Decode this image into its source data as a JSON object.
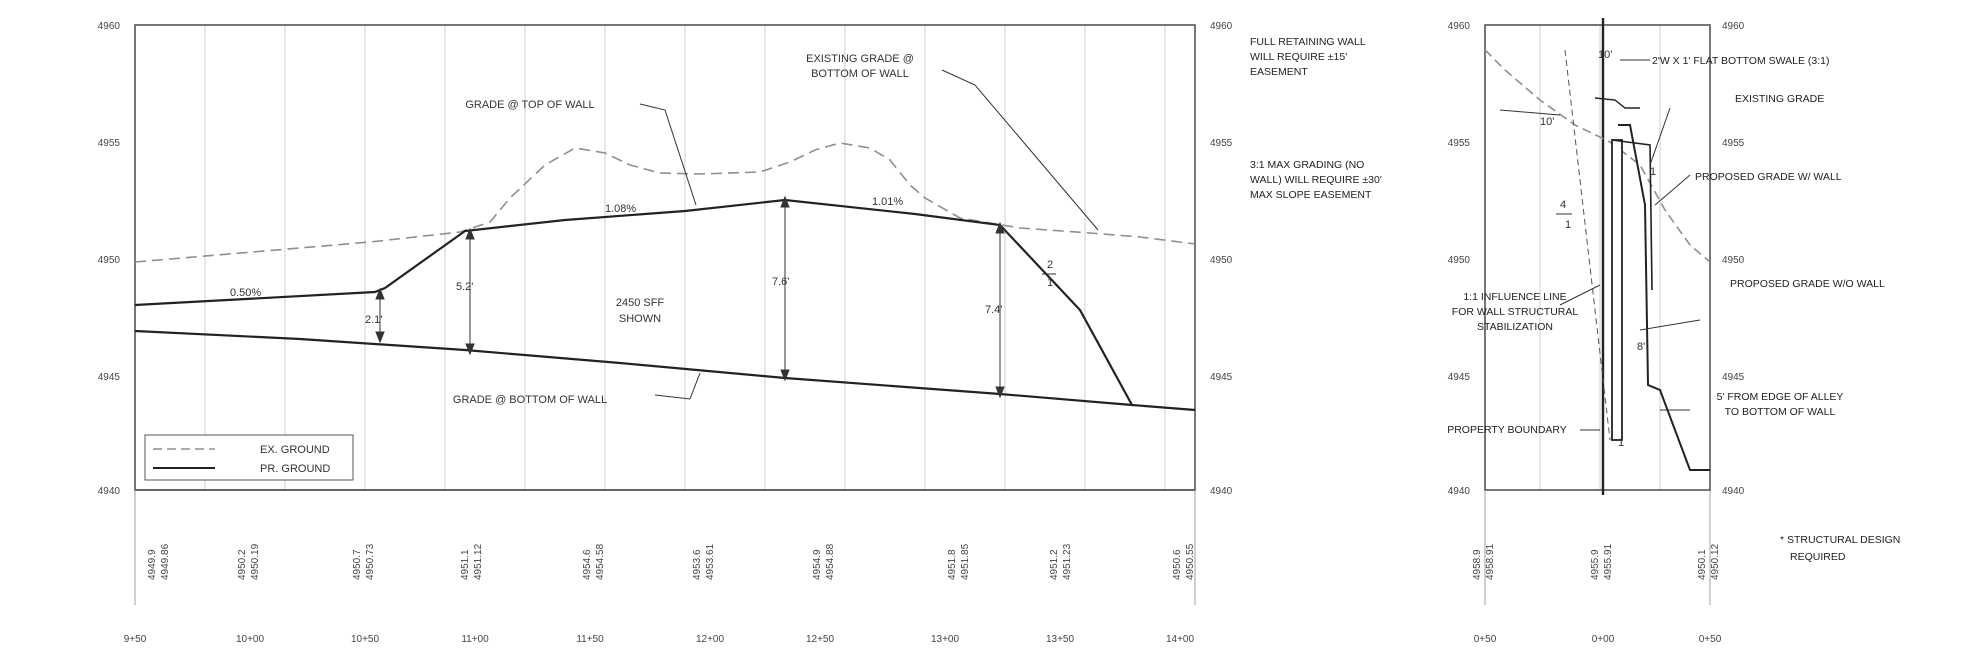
{
  "profile": {
    "elev_ticks": [
      "4960",
      "4955",
      "4950",
      "4945",
      "4940"
    ],
    "station_labels": [
      "9+50",
      "10+00",
      "10+50",
      "11+00",
      "11+50",
      "12+00",
      "12+50",
      "13+00",
      "13+50",
      "14+00"
    ],
    "station_elevations": [
      {
        "top": "4949.9",
        "bottom": "4949.86"
      },
      {
        "top": "4950.2",
        "bottom": "4950.19"
      },
      {
        "top": "4950.7",
        "bottom": "4950.73"
      },
      {
        "top": "4951.1",
        "bottom": "4951.12"
      },
      {
        "top": "4954.6",
        "bottom": "4954.58"
      },
      {
        "top": "4953.6",
        "bottom": "4953.61"
      },
      {
        "top": "4954.9",
        "bottom": "4954.88"
      },
      {
        "top": "4951.8",
        "bottom": "4951.85"
      },
      {
        "top": "4951.2",
        "bottom": "4951.23"
      },
      {
        "top": "4950.6",
        "bottom": "4950.55"
      }
    ],
    "slope_labels": [
      "0.50%",
      "1.08%",
      "1.01%"
    ],
    "height_labels": [
      "2.1'",
      "5.2'",
      "7.6'",
      "7.4'"
    ],
    "center_note": [
      "2450 SFF",
      "SHOWN"
    ],
    "callouts": {
      "grade_top": "GRADE @ TOP OF WALL",
      "grade_bottom": "GRADE @ BOTTOM OF WALL",
      "existing_grade": [
        "EXISTING GRADE @",
        "BOTTOM OF WALL"
      ]
    },
    "side_ratio": [
      "2",
      "1"
    ],
    "legend": [
      {
        "label": "EX. GROUND",
        "style": "dashed"
      },
      {
        "label": "PR. GROUND",
        "style": "solid"
      }
    ]
  },
  "notes": {
    "full_retaining": [
      "FULL RETAINING WALL",
      "WILL REQUIRE ±15'",
      "EASEMENT"
    ],
    "max_grading": [
      "3:1 MAX GRADING (NO",
      "WALL) WILL REQUIRE ±30'",
      "MAX SLOPE EASEMENT"
    ]
  },
  "section": {
    "elev_ticks": [
      "4960",
      "4955",
      "4950",
      "4945",
      "4940"
    ],
    "station_labels": [
      "0+50",
      "0+00",
      "0+50"
    ],
    "station_elevations": [
      {
        "top": "4958.9",
        "bottom": "4958.91"
      },
      {
        "top": "4955.9",
        "bottom": "4955.91"
      },
      {
        "top": "4950.1",
        "bottom": "4950.12"
      }
    ],
    "callouts": {
      "swale": "2'W X 1' FLAT BOTTOM SWALE (3:1)",
      "existing_grade": "EXISTING GRADE",
      "proposed_wall": "PROPOSED GRADE W/ WALL",
      "proposed_no_wall": "PROPOSED GRADE W/O WALL",
      "influence": [
        "1:1 INFLUENCE LINE",
        "FOR WALL STRUCTURAL",
        "STABILIZATION"
      ],
      "alley": [
        "5' FROM EDGE OF ALLEY",
        "TO BOTTOM OF WALL"
      ],
      "property": "PROPERTY BOUNDARY"
    },
    "dims": [
      "10'",
      "8'",
      "10'",
      "1"
    ],
    "ratio_small": [
      "4",
      "1"
    ],
    "ratio_small2": [
      "1",
      "1"
    ]
  },
  "structural_note": [
    "* STRUCTURAL DESIGN",
    "REQUIRED"
  ]
}
